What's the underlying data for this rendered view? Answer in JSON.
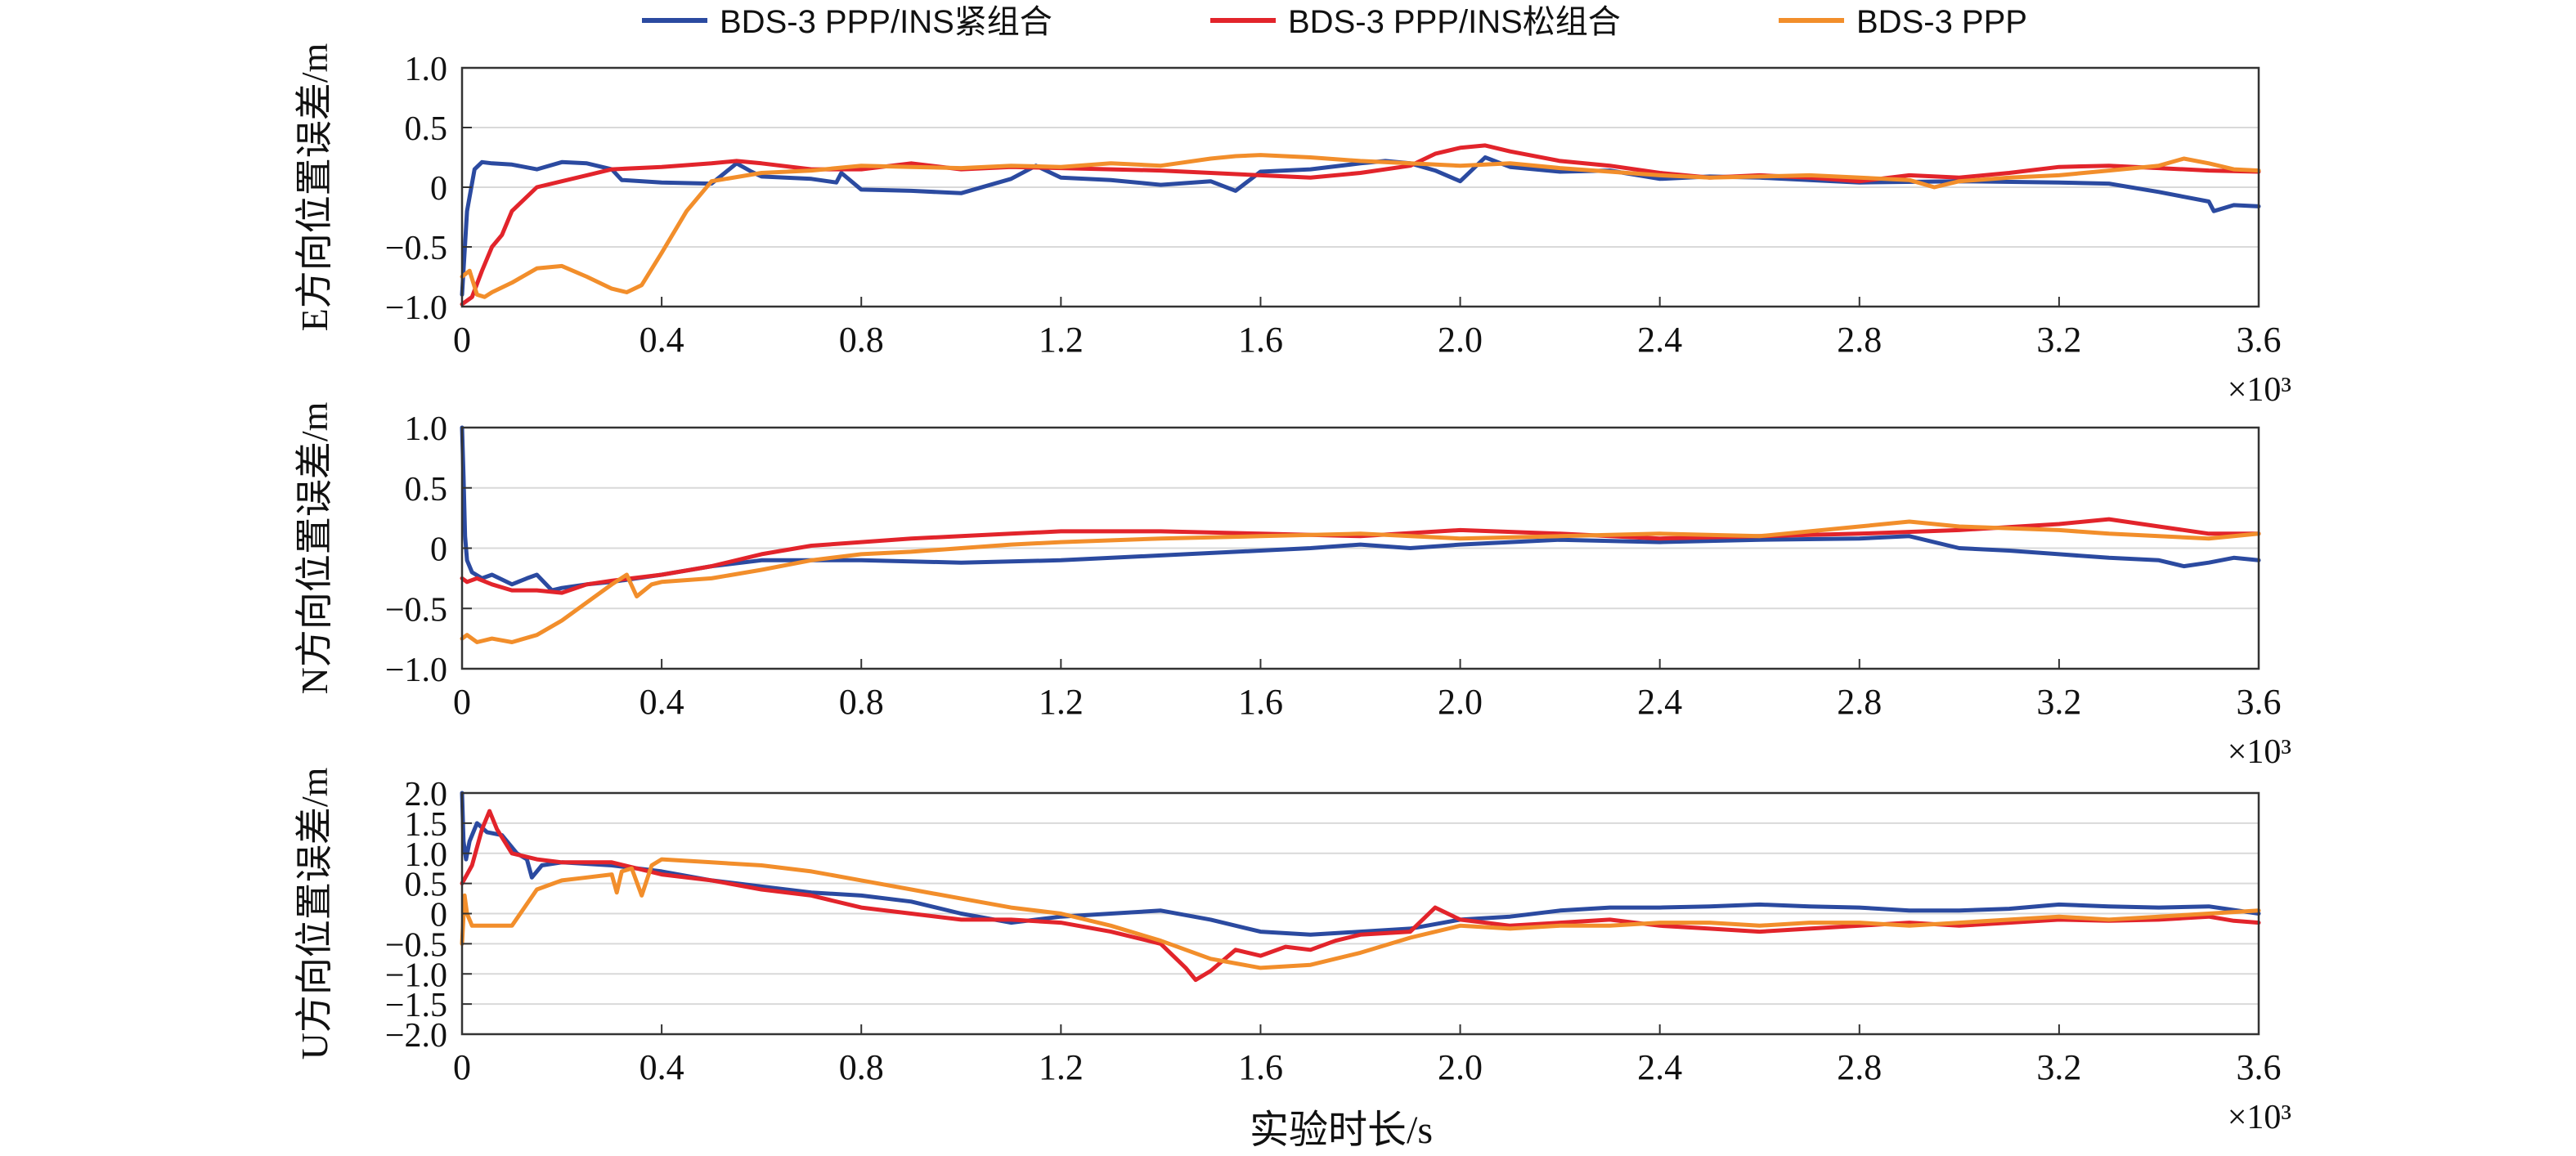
{
  "legend": [
    {
      "label": "BDS-3 PPP/INS紧组合",
      "color": "#2b4aa0"
    },
    {
      "label": "BDS-3 PPP/INS松组合",
      "color": "#e2242b"
    },
    {
      "label": "BDS-3 PPP",
      "color": "#f28e2b"
    }
  ],
  "xlabel": "实验时长/s",
  "x_multiplier": "×10³",
  "chart_data": [
    {
      "type": "line",
      "ylabel": "E方向位置误差/m",
      "xlim": [
        0,
        3600
      ],
      "ylim": [
        -1.0,
        1.0
      ],
      "x_ticks": [
        "0",
        "0.4",
        "0.8",
        "1.2",
        "1.6",
        "2.0",
        "2.4",
        "2.8",
        "3.2",
        "3.6"
      ],
      "y_ticks": [
        1.0,
        0.5,
        0,
        -0.5,
        -1.0
      ],
      "y_tick_labels": [
        "1.0",
        "0.5",
        "0",
        "−0.5",
        "−1.0"
      ],
      "grid": true,
      "x_multiplier": "×10³",
      "series": [
        {
          "name": "BDS-3 PPP/INS紧组合",
          "color": "#2b4aa0",
          "x": [
            0,
            10,
            25,
            40,
            60,
            100,
            150,
            200,
            250,
            300,
            320,
            400,
            500,
            550,
            580,
            600,
            700,
            750,
            760,
            800,
            900,
            1000,
            1100,
            1150,
            1200,
            1300,
            1400,
            1500,
            1550,
            1600,
            1700,
            1800,
            1850,
            1900,
            1950,
            2000,
            2050,
            2100,
            2200,
            2300,
            2400,
            2500,
            2600,
            2800,
            3000,
            3200,
            3300,
            3400,
            3450,
            3500,
            3510,
            3550,
            3600
          ],
          "y": [
            -0.9,
            -0.2,
            0.15,
            0.21,
            0.2,
            0.19,
            0.15,
            0.21,
            0.2,
            0.15,
            0.06,
            0.04,
            0.03,
            0.2,
            0.13,
            0.09,
            0.07,
            0.04,
            0.12,
            -0.02,
            -0.03,
            -0.05,
            0.07,
            0.18,
            0.08,
            0.06,
            0.02,
            0.05,
            -0.03,
            0.13,
            0.15,
            0.2,
            0.22,
            0.2,
            0.14,
            0.05,
            0.25,
            0.17,
            0.13,
            0.14,
            0.07,
            0.09,
            0.08,
            0.04,
            0.05,
            0.04,
            0.03,
            -0.04,
            -0.08,
            -0.12,
            -0.2,
            -0.15,
            -0.16
          ]
        },
        {
          "name": "BDS-3 PPP/INS松组合",
          "color": "#e2242b",
          "x": [
            0,
            20,
            40,
            60,
            80,
            100,
            150,
            200,
            250,
            300,
            400,
            500,
            550,
            600,
            700,
            800,
            900,
            1000,
            1100,
            1200,
            1300,
            1400,
            1500,
            1600,
            1700,
            1800,
            1900,
            1950,
            2000,
            2050,
            2100,
            2200,
            2300,
            2400,
            2500,
            2600,
            2700,
            2800,
            2900,
            3000,
            3100,
            3200,
            3300,
            3400,
            3500,
            3600
          ],
          "y": [
            -0.98,
            -0.92,
            -0.7,
            -0.5,
            -0.4,
            -0.2,
            0.0,
            0.05,
            0.1,
            0.15,
            0.17,
            0.2,
            0.22,
            0.2,
            0.15,
            0.15,
            0.2,
            0.15,
            0.17,
            0.16,
            0.15,
            0.14,
            0.12,
            0.1,
            0.08,
            0.12,
            0.18,
            0.28,
            0.33,
            0.35,
            0.3,
            0.22,
            0.18,
            0.12,
            0.08,
            0.1,
            0.08,
            0.05,
            0.1,
            0.08,
            0.12,
            0.17,
            0.18,
            0.16,
            0.14,
            0.13
          ]
        },
        {
          "name": "BDS-3 PPP",
          "color": "#f28e2b",
          "x": [
            0,
            15,
            30,
            45,
            60,
            100,
            150,
            200,
            250,
            300,
            330,
            360,
            400,
            450,
            500,
            600,
            700,
            800,
            900,
            1000,
            1100,
            1200,
            1300,
            1400,
            1500,
            1550,
            1600,
            1700,
            1800,
            1900,
            2000,
            2100,
            2200,
            2300,
            2400,
            2500,
            2600,
            2700,
            2800,
            2900,
            2950,
            3000,
            3100,
            3200,
            3300,
            3400,
            3450,
            3500,
            3550,
            3600
          ],
          "y": [
            -0.75,
            -0.7,
            -0.9,
            -0.92,
            -0.88,
            -0.8,
            -0.68,
            -0.66,
            -0.75,
            -0.85,
            -0.88,
            -0.82,
            -0.55,
            -0.2,
            0.05,
            0.12,
            0.14,
            0.18,
            0.17,
            0.16,
            0.18,
            0.17,
            0.2,
            0.18,
            0.24,
            0.26,
            0.27,
            0.25,
            0.22,
            0.2,
            0.18,
            0.2,
            0.16,
            0.13,
            0.1,
            0.08,
            0.09,
            0.1,
            0.08,
            0.06,
            0.0,
            0.05,
            0.08,
            0.1,
            0.14,
            0.18,
            0.24,
            0.2,
            0.15,
            0.14
          ]
        }
      ]
    },
    {
      "type": "line",
      "ylabel": "N方向位置误差/m",
      "xlim": [
        0,
        3600
      ],
      "ylim": [
        -1.0,
        1.0
      ],
      "x_ticks": [
        "0",
        "0.4",
        "0.8",
        "1.2",
        "1.6",
        "2.0",
        "2.4",
        "2.8",
        "3.2",
        "3.6"
      ],
      "y_ticks": [
        1.0,
        0.5,
        0,
        -0.5,
        -1.0
      ],
      "y_tick_labels": [
        "1.0",
        "0.5",
        "0",
        "−0.5",
        "−1.0"
      ],
      "grid": true,
      "x_multiplier": "×10³",
      "series": [
        {
          "name": "BDS-3 PPP/INS紧组合",
          "color": "#2b4aa0",
          "x": [
            0,
            3,
            6,
            10,
            20,
            40,
            60,
            100,
            130,
            150,
            180,
            200,
            250,
            300,
            350,
            400,
            500,
            600,
            800,
            1000,
            1200,
            1400,
            1600,
            1700,
            1800,
            1900,
            2000,
            2200,
            2400,
            2600,
            2800,
            2900,
            3000,
            3100,
            3200,
            3300,
            3400,
            3450,
            3500,
            3550,
            3600
          ],
          "y": [
            1.0,
            0.6,
            0.1,
            -0.1,
            -0.2,
            -0.25,
            -0.22,
            -0.3,
            -0.25,
            -0.22,
            -0.35,
            -0.33,
            -0.3,
            -0.28,
            -0.25,
            -0.22,
            -0.15,
            -0.1,
            -0.1,
            -0.12,
            -0.1,
            -0.06,
            -0.02,
            0.0,
            0.03,
            0.0,
            0.03,
            0.07,
            0.05,
            0.07,
            0.08,
            0.1,
            0.0,
            -0.02,
            -0.05,
            -0.08,
            -0.1,
            -0.15,
            -0.12,
            -0.08,
            -0.1
          ]
        },
        {
          "name": "BDS-3 PPP/INS松组合",
          "color": "#e2242b",
          "x": [
            0,
            10,
            30,
            60,
            100,
            150,
            200,
            250,
            300,
            400,
            500,
            600,
            700,
            800,
            900,
            1000,
            1100,
            1200,
            1400,
            1600,
            1800,
            2000,
            2200,
            2400,
            2600,
            2800,
            3000,
            3200,
            3300,
            3400,
            3500,
            3600
          ],
          "y": [
            -0.25,
            -0.28,
            -0.25,
            -0.3,
            -0.35,
            -0.35,
            -0.37,
            -0.3,
            -0.27,
            -0.22,
            -0.15,
            -0.05,
            0.02,
            0.05,
            0.08,
            0.1,
            0.12,
            0.14,
            0.14,
            0.12,
            0.1,
            0.15,
            0.12,
            0.08,
            0.1,
            0.12,
            0.15,
            0.2,
            0.24,
            0.18,
            0.12,
            0.12
          ]
        },
        {
          "name": "BDS-3 PPP",
          "color": "#f28e2b",
          "x": [
            0,
            10,
            30,
            60,
            100,
            150,
            200,
            250,
            300,
            330,
            350,
            380,
            400,
            500,
            600,
            700,
            800,
            900,
            1000,
            1100,
            1200,
            1400,
            1600,
            1800,
            2000,
            2200,
            2400,
            2600,
            2800,
            2900,
            3000,
            3200,
            3300,
            3400,
            3500,
            3600
          ],
          "y": [
            -0.75,
            -0.72,
            -0.78,
            -0.75,
            -0.78,
            -0.72,
            -0.6,
            -0.45,
            -0.3,
            -0.22,
            -0.4,
            -0.3,
            -0.28,
            -0.25,
            -0.18,
            -0.1,
            -0.05,
            -0.03,
            0.0,
            0.03,
            0.05,
            0.08,
            0.1,
            0.12,
            0.08,
            0.1,
            0.12,
            0.1,
            0.18,
            0.22,
            0.18,
            0.15,
            0.12,
            0.1,
            0.08,
            0.12
          ]
        }
      ]
    },
    {
      "type": "line",
      "ylabel": "U方向位置误差/m",
      "xlim": [
        0,
        3600
      ],
      "ylim": [
        -2.0,
        2.0
      ],
      "x_ticks": [
        "0",
        "0.4",
        "0.8",
        "1.2",
        "1.6",
        "2.0",
        "2.4",
        "2.8",
        "3.2",
        "3.6"
      ],
      "y_ticks": [
        2.0,
        1.5,
        1.0,
        0.5,
        0,
        -0.5,
        -1.0,
        -1.5,
        -2.0
      ],
      "y_tick_labels": [
        "2.0",
        "1.5",
        "1.0",
        "0.5",
        "0",
        "−0.5",
        "−1.0",
        "−1.5",
        "−2.0"
      ],
      "grid": true,
      "x_multiplier": "×10³",
      "series": [
        {
          "name": "BDS-3 PPP/INS紧组合",
          "color": "#2b4aa0",
          "x": [
            0,
            3,
            8,
            15,
            30,
            50,
            80,
            110,
            130,
            140,
            160,
            200,
            300,
            400,
            500,
            600,
            700,
            800,
            900,
            1000,
            1100,
            1200,
            1300,
            1400,
            1500,
            1600,
            1700,
            1800,
            1900,
            2000,
            2100,
            2200,
            2300,
            2400,
            2500,
            2600,
            2700,
            2800,
            2900,
            3000,
            3100,
            3200,
            3300,
            3400,
            3500,
            3600
          ],
          "y": [
            2.0,
            1.2,
            0.9,
            1.2,
            1.5,
            1.35,
            1.3,
            1.0,
            0.9,
            0.6,
            0.8,
            0.85,
            0.8,
            0.7,
            0.55,
            0.45,
            0.35,
            0.3,
            0.2,
            0.0,
            -0.15,
            -0.05,
            0.0,
            0.05,
            -0.1,
            -0.3,
            -0.35,
            -0.3,
            -0.25,
            -0.1,
            -0.05,
            0.05,
            0.1,
            0.1,
            0.12,
            0.15,
            0.12,
            0.1,
            0.05,
            0.05,
            0.08,
            0.15,
            0.12,
            0.1,
            0.12,
            0.0
          ]
        },
        {
          "name": "BDS-3 PPP/INS松组合",
          "color": "#e2242b",
          "x": [
            0,
            20,
            40,
            55,
            70,
            100,
            150,
            200,
            300,
            400,
            500,
            600,
            700,
            800,
            900,
            1000,
            1100,
            1200,
            1300,
            1400,
            1450,
            1470,
            1500,
            1550,
            1600,
            1650,
            1700,
            1750,
            1800,
            1900,
            1950,
            2000,
            2100,
            2200,
            2300,
            2400,
            2500,
            2600,
            2700,
            2800,
            2900,
            3000,
            3100,
            3200,
            3300,
            3400,
            3500,
            3550,
            3600
          ],
          "y": [
            0.5,
            0.8,
            1.4,
            1.7,
            1.4,
            1.0,
            0.9,
            0.85,
            0.85,
            0.65,
            0.55,
            0.4,
            0.3,
            0.1,
            0.0,
            -0.1,
            -0.1,
            -0.15,
            -0.3,
            -0.5,
            -0.9,
            -1.1,
            -0.95,
            -0.6,
            -0.7,
            -0.55,
            -0.6,
            -0.45,
            -0.35,
            -0.3,
            0.1,
            -0.1,
            -0.2,
            -0.15,
            -0.1,
            -0.2,
            -0.25,
            -0.3,
            -0.25,
            -0.2,
            -0.15,
            -0.2,
            -0.15,
            -0.1,
            -0.12,
            -0.1,
            -0.05,
            -0.12,
            -0.15
          ]
        },
        {
          "name": "BDS-3 PPP",
          "color": "#f28e2b",
          "x": [
            0,
            5,
            10,
            20,
            30,
            60,
            100,
            150,
            200,
            250,
            300,
            310,
            320,
            340,
            360,
            380,
            400,
            500,
            600,
            700,
            800,
            900,
            1000,
            1100,
            1200,
            1300,
            1400,
            1500,
            1600,
            1700,
            1800,
            1900,
            2000,
            2100,
            2200,
            2300,
            2400,
            2500,
            2600,
            2700,
            2800,
            2900,
            3000,
            3100,
            3200,
            3300,
            3400,
            3500,
            3600
          ],
          "y": [
            -0.5,
            0.3,
            0.0,
            -0.2,
            -0.2,
            -0.2,
            -0.2,
            0.4,
            0.55,
            0.6,
            0.65,
            0.35,
            0.7,
            0.75,
            0.3,
            0.8,
            0.9,
            0.85,
            0.8,
            0.7,
            0.55,
            0.4,
            0.25,
            0.1,
            0.0,
            -0.2,
            -0.45,
            -0.75,
            -0.9,
            -0.85,
            -0.65,
            -0.4,
            -0.2,
            -0.25,
            -0.2,
            -0.2,
            -0.15,
            -0.15,
            -0.2,
            -0.15,
            -0.15,
            -0.2,
            -0.15,
            -0.1,
            -0.05,
            -0.1,
            -0.05,
            0.0,
            0.05
          ]
        }
      ]
    }
  ]
}
